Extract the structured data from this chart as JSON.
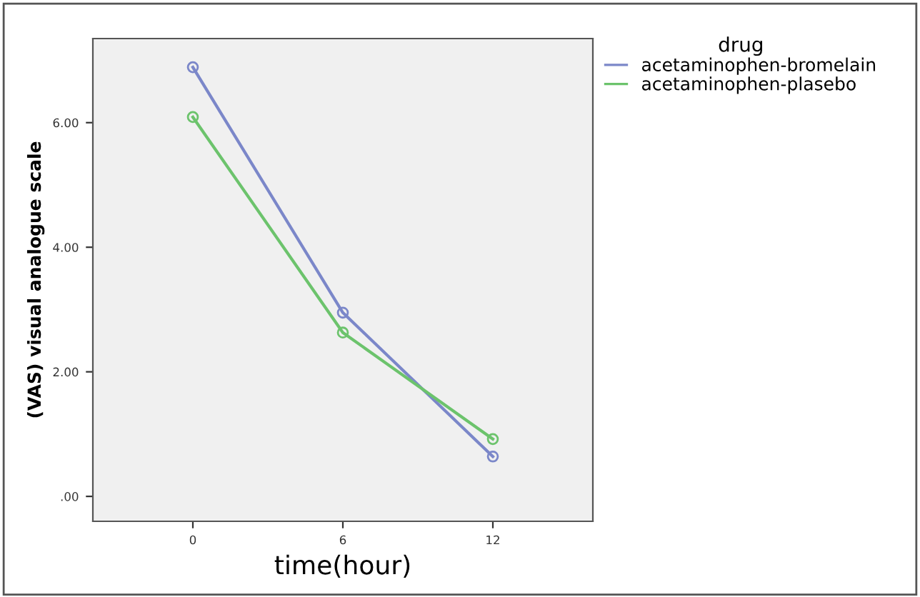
{
  "chart_data": {
    "type": "line",
    "xlabel": "time(hour)",
    "ylabel": "(VAS) visual analogue scale",
    "legend_title": "drug",
    "legend": "top right",
    "marker": "circle",
    "line_style": "solid",
    "grid": false,
    "x": [
      0,
      6,
      12
    ],
    "xlim": [
      -4,
      16
    ],
    "xticks": [
      0,
      6,
      12
    ],
    "ylim": [
      -0.4,
      7.35
    ],
    "yticks": [
      {
        "value": 0,
        "label": ".00"
      },
      {
        "value": 2,
        "label": "2.00"
      },
      {
        "value": 4,
        "label": "4.00"
      },
      {
        "value": 6,
        "label": "6.00"
      }
    ],
    "series": [
      {
        "name": "acetaminophen-bromelain",
        "color": "#7b87c9",
        "values": [
          6.89,
          2.95,
          0.64
        ]
      },
      {
        "name": "acetaminophen-plasebo",
        "color": "#6cc36c",
        "values": [
          6.09,
          2.63,
          0.92
        ]
      }
    ]
  }
}
